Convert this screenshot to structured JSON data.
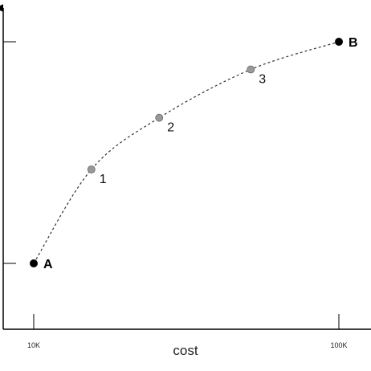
{
  "chart_data": {
    "type": "line",
    "title": "",
    "xlabel": "cost",
    "ylabel": "",
    "x_ticks": [
      "10K",
      "100K"
    ],
    "y_ticks": [],
    "grid": false,
    "legend": "none",
    "series": [
      {
        "line_style": "dashed",
        "points": [
          {
            "label": "A",
            "x": 10,
            "y": 0.0,
            "kind": "endpoint"
          },
          {
            "label": "1",
            "x": 27,
            "y": 0.424,
            "kind": "intermediate"
          },
          {
            "label": "2",
            "x": 47,
            "y": 0.657,
            "kind": "intermediate"
          },
          {
            "label": "3",
            "x": 74,
            "y": 0.875,
            "kind": "intermediate"
          },
          {
            "label": "B",
            "x": 100,
            "y": 1.0,
            "kind": "endpoint"
          }
        ]
      }
    ],
    "colors": {
      "axis": "#000000",
      "endpoint": "#000000",
      "intermediate": "#999999",
      "curve": "#333333"
    }
  }
}
